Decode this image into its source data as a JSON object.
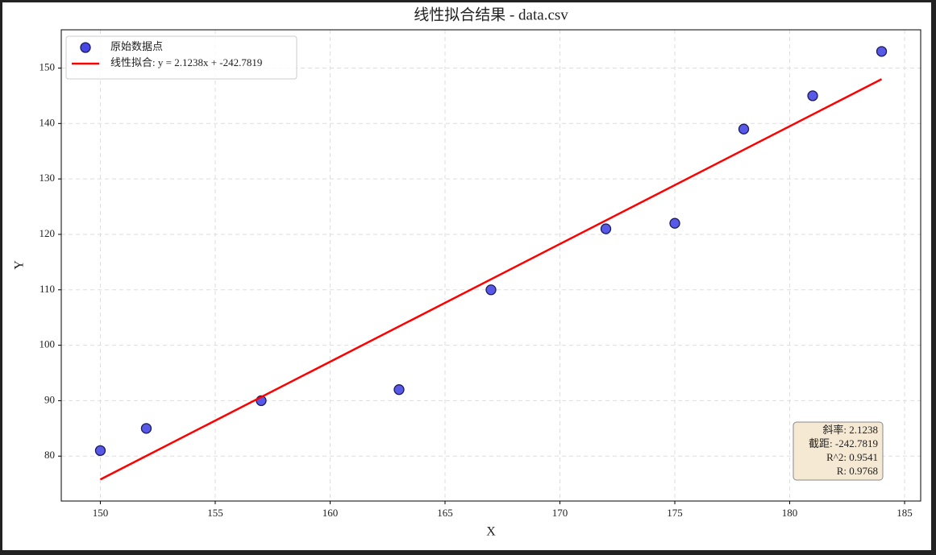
{
  "chart_data": {
    "type": "scatter",
    "title": "线性拟合结果 - data.csv",
    "x_label": "X",
    "y_label": "Y",
    "series": [
      {
        "name": "原始数据点",
        "type": "scatter",
        "color": "#4747e6",
        "x": [
          150,
          152,
          157,
          163,
          167,
          172,
          175,
          178,
          181,
          184
        ],
        "values": [
          81,
          85,
          90,
          92,
          110,
          121,
          122,
          139,
          145,
          153
        ]
      },
      {
        "name": "线性拟合: y = 2.1238x + -242.7819",
        "type": "line",
        "color": "#ff0000",
        "x": [
          150,
          184
        ],
        "values": [
          75.79,
          148.0
        ]
      }
    ],
    "annotations": [
      "斜率: 2.1238",
      "截距: -242.7819",
      "R^2: 0.9541",
      "R: 0.9768"
    ],
    "xlim": [
      148.3,
      185.7
    ],
    "ylim": [
      71.9,
      156.9
    ],
    "xticks": [
      150,
      155,
      160,
      165,
      170,
      175,
      180,
      185
    ],
    "yticks": [
      80,
      90,
      100,
      110,
      120,
      130,
      140,
      150
    ],
    "grid": true,
    "legend": "upper left"
  }
}
